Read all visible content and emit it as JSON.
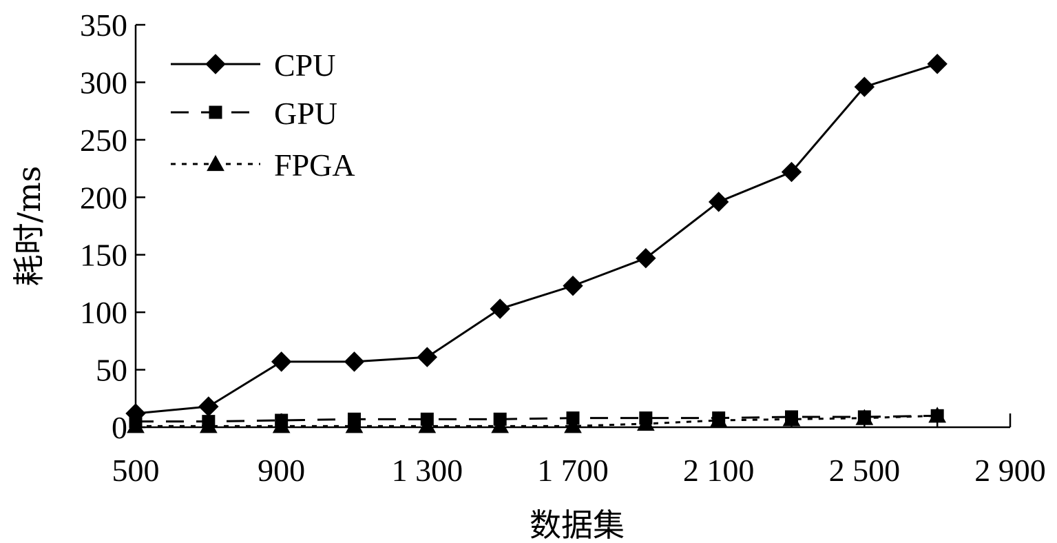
{
  "chart_data": {
    "type": "line",
    "title": "",
    "xlabel": "数据集",
    "ylabel": "耗时/ms",
    "xlim": [
      500,
      2900
    ],
    "ylim": [
      0,
      350
    ],
    "x_ticks": [
      500,
      900,
      1300,
      1700,
      2100,
      2500,
      2900
    ],
    "x_tick_labels": [
      "500",
      "900",
      "1 300",
      "1 700",
      "2 100",
      "2 500",
      "2 900"
    ],
    "y_ticks": [
      0,
      50,
      100,
      150,
      200,
      250,
      300,
      350
    ],
    "y_tick_labels": [
      "0",
      "50",
      "100",
      "150",
      "200",
      "250",
      "300",
      "350"
    ],
    "grid": false,
    "legend_position": "top-left",
    "x": [
      500,
      700,
      900,
      1100,
      1300,
      1500,
      1700,
      1900,
      2100,
      2300,
      2500,
      2700
    ],
    "series": [
      {
        "name": "CPU",
        "line_style": "solid",
        "marker": "diamond",
        "values": [
          12,
          18,
          57,
          57,
          61,
          103,
          123,
          147,
          196,
          222,
          296,
          316
        ]
      },
      {
        "name": "GPU",
        "line_style": "dashed",
        "marker": "square",
        "values": [
          5,
          5,
          6,
          7,
          7,
          7,
          8,
          8,
          8,
          9,
          9,
          10
        ]
      },
      {
        "name": "FPGA",
        "line_style": "dotted",
        "marker": "triangle",
        "values": [
          1,
          1,
          1,
          1,
          1,
          1,
          1,
          3,
          6,
          7,
          8,
          10
        ]
      }
    ]
  }
}
